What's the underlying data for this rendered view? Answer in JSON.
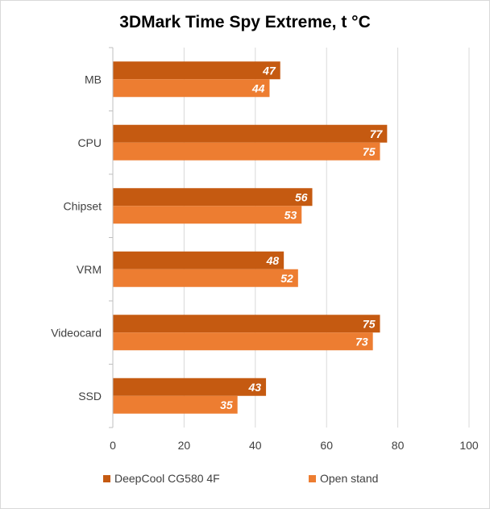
{
  "chart_data": {
    "type": "bar",
    "orientation": "horizontal",
    "title": "3DMark Time Spy Extreme, t °C",
    "categories": [
      "MB",
      "CPU",
      "Chipset",
      "VRM",
      "Videocard",
      "SSD"
    ],
    "series": [
      {
        "name": "DeepCool CG580 4F",
        "color": "#c55a11",
        "values": [
          47,
          77,
          56,
          48,
          75,
          43
        ]
      },
      {
        "name": "Open stand",
        "color": "#ed7d31",
        "values": [
          44,
          75,
          53,
          52,
          73,
          35
        ]
      }
    ],
    "xlim": [
      0,
      100
    ],
    "xticks": [
      "0",
      "20",
      "40",
      "60",
      "80",
      "100"
    ],
    "grid": true,
    "legend": "bottom",
    "data_labels": true
  }
}
